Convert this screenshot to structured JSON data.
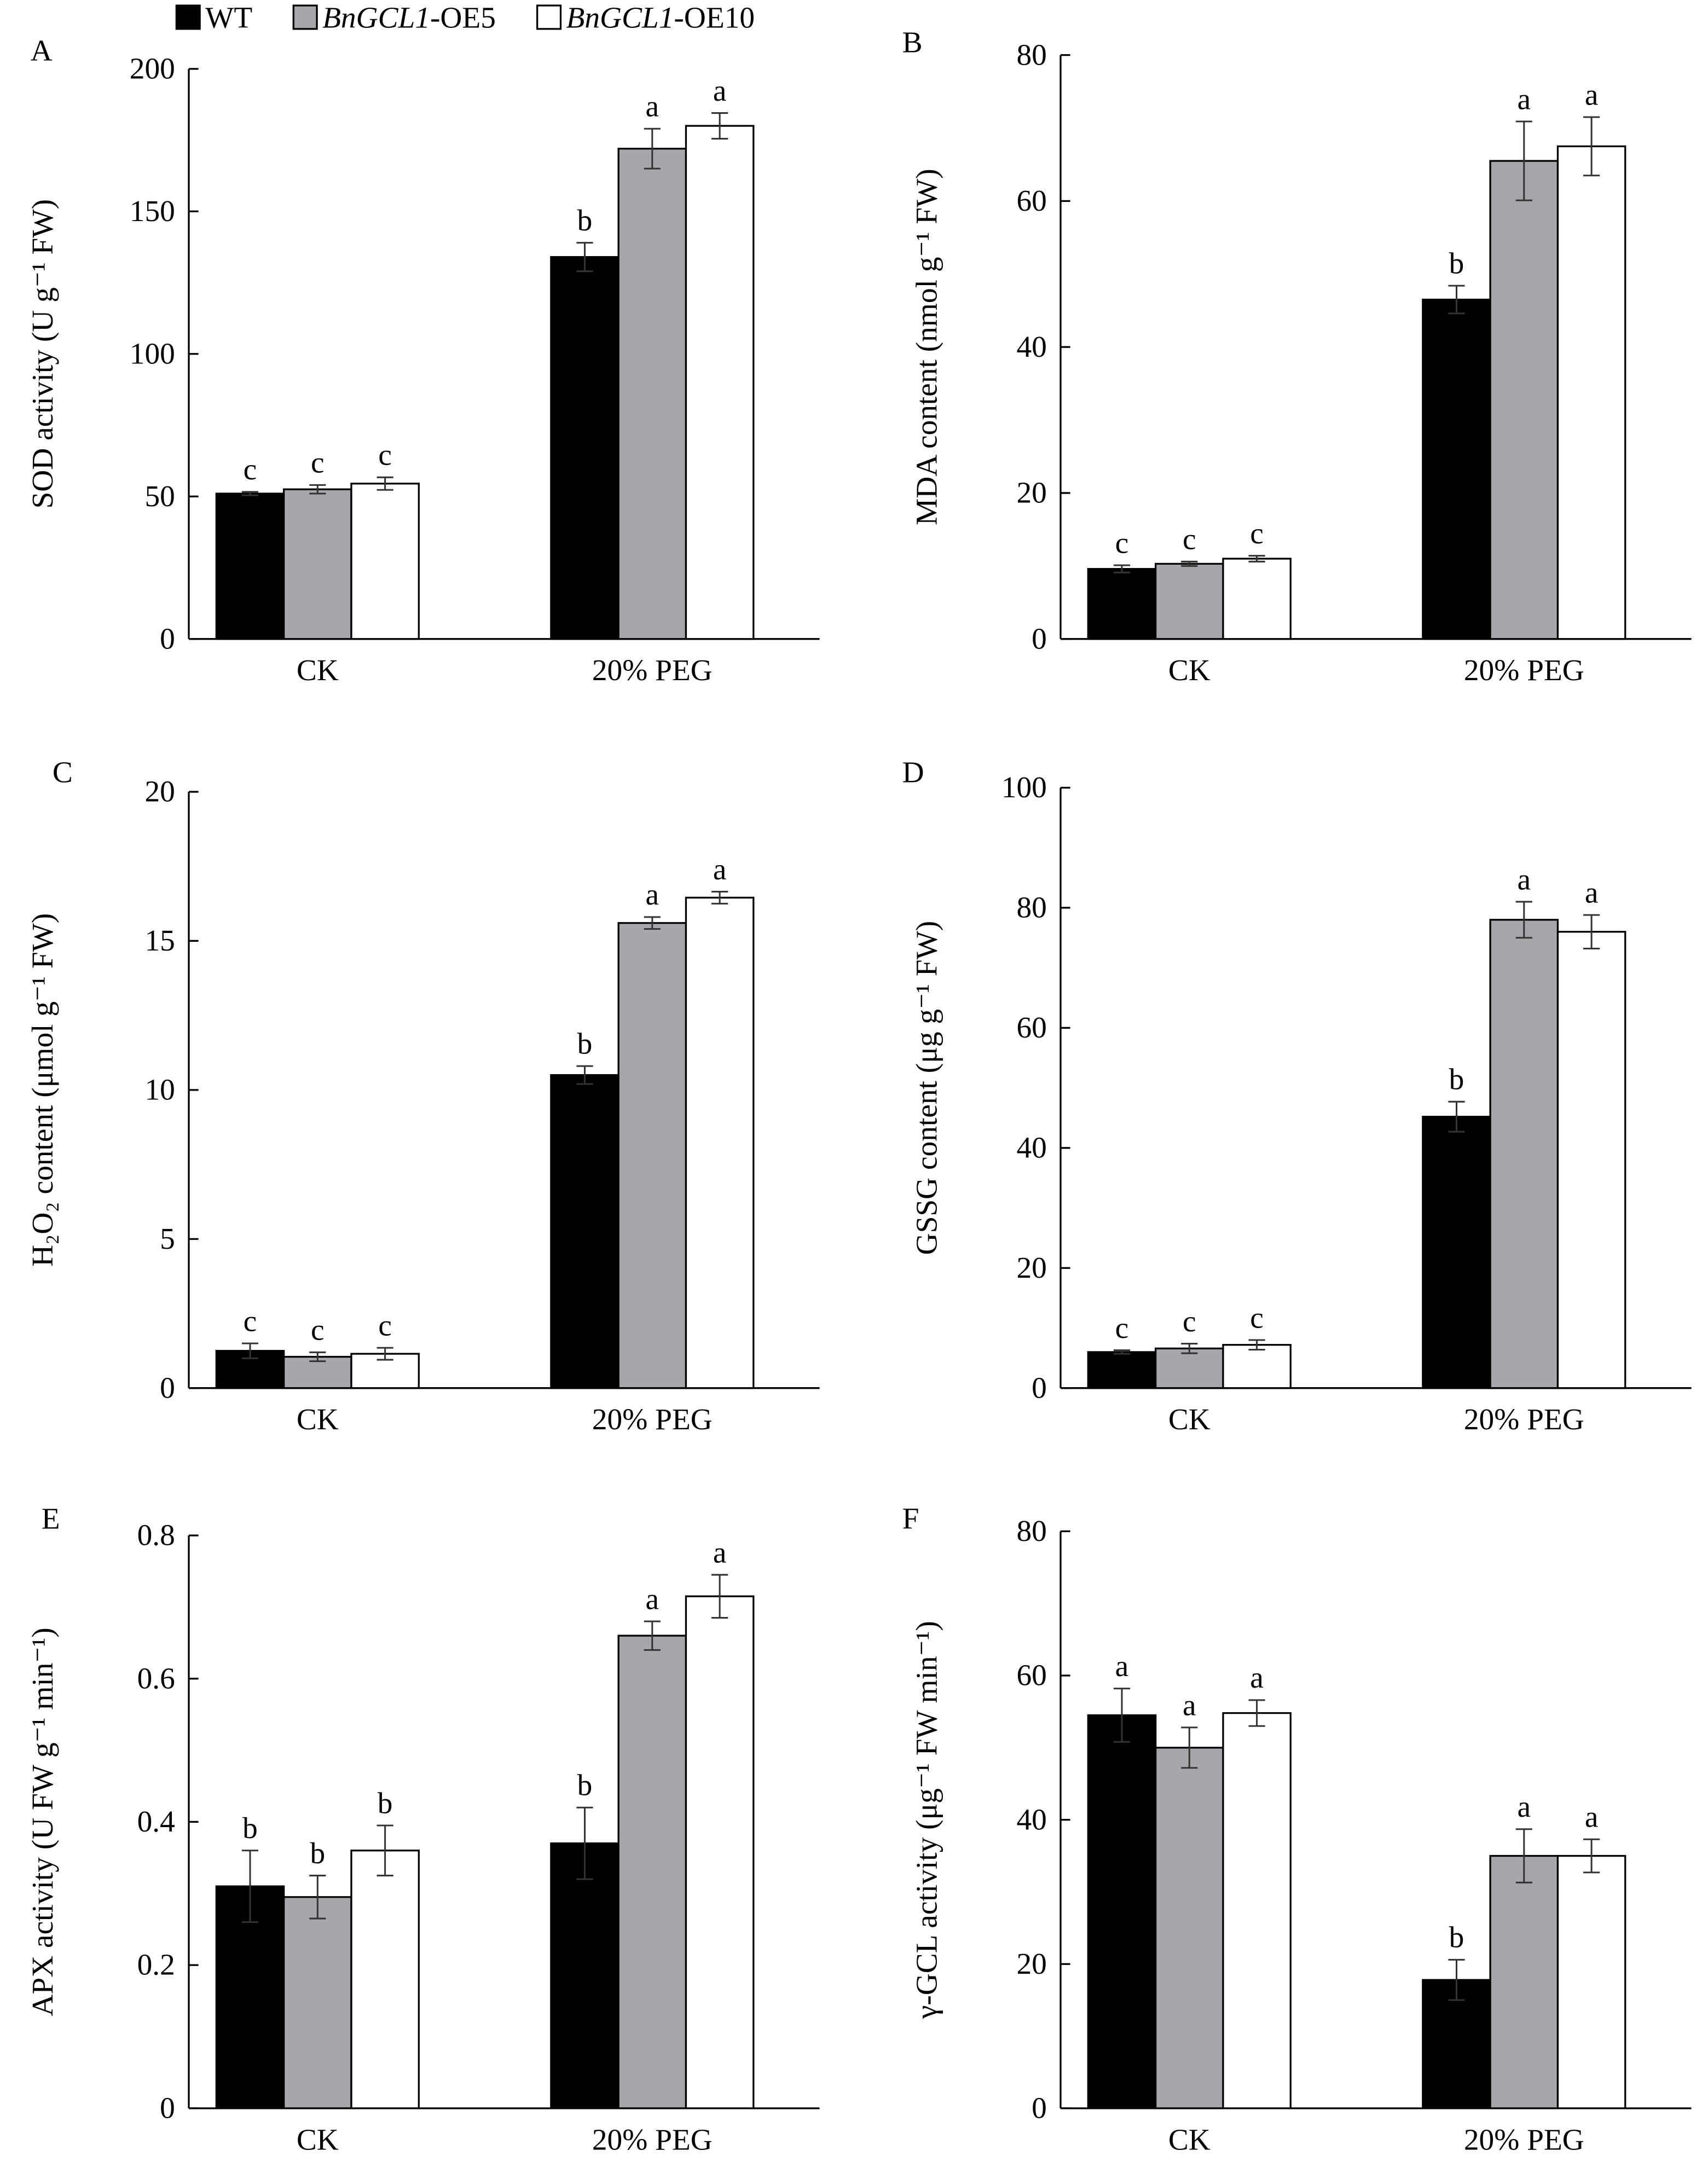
{
  "legend": [
    {
      "italic": "",
      "text": "WT",
      "color": "#000000"
    },
    {
      "italic": "BnGCL1",
      "text": "-OE5",
      "color": "#a7a6ab"
    },
    {
      "italic": "BnGCL1",
      "text": "-OE10",
      "color": "#ffffff"
    }
  ],
  "chart_data": [
    {
      "panel": "A",
      "type": "bar",
      "ylabel": "SOD activity (U g⁻¹ FW)",
      "categories": [
        "CK",
        "20% PEG"
      ],
      "ylim": [
        0,
        200
      ],
      "yticks": [
        "0",
        "50",
        "100",
        "150",
        "200"
      ],
      "series": [
        {
          "name": "WT",
          "values": [
            51,
            134
          ],
          "errors": [
            0.6,
            5
          ],
          "letters": [
            "c",
            "b"
          ]
        },
        {
          "name": "BnGCL1-OE5",
          "values": [
            52.5,
            172
          ],
          "errors": [
            1.5,
            7
          ],
          "letters": [
            "c",
            "a"
          ]
        },
        {
          "name": "BnGCL1-OE10",
          "values": [
            54.5,
            180
          ],
          "errors": [
            2.2,
            4.5
          ],
          "letters": [
            "c",
            "a"
          ]
        }
      ]
    },
    {
      "panel": "B",
      "type": "bar",
      "ylabel": "MDA content (nmol g⁻¹ FW)",
      "categories": [
        "CK",
        "20% PEG"
      ],
      "ylim": [
        0,
        80
      ],
      "yticks": [
        "0",
        "20",
        "40",
        "60",
        "80"
      ],
      "series": [
        {
          "name": "WT",
          "values": [
            9.6,
            46.5
          ],
          "errors": [
            0.5,
            1.9
          ],
          "letters": [
            "c",
            "b"
          ]
        },
        {
          "name": "BnGCL1-OE5",
          "values": [
            10.3,
            65.5
          ],
          "errors": [
            0.3,
            5.4
          ],
          "letters": [
            "c",
            "a"
          ]
        },
        {
          "name": "BnGCL1-OE10",
          "values": [
            11,
            67.5
          ],
          "errors": [
            0.4,
            4
          ]
        }
      ],
      "letters_note": ""
    },
    {
      "panel": "C",
      "type": "bar",
      "ylabel": "H₂O₂ content (μmol g⁻¹ FW)",
      "categories": [
        "CK",
        "20% PEG"
      ],
      "ylim": [
        0,
        20
      ],
      "yticks": [
        "0",
        "5",
        "10",
        "15",
        "20"
      ],
      "series": [
        {
          "name": "WT",
          "values": [
            1.25,
            10.5
          ],
          "errors": [
            0.25,
            0.3
          ],
          "letters": [
            "c",
            "b"
          ]
        },
        {
          "name": "BnGCL1-OE5",
          "values": [
            1.05,
            15.6
          ],
          "errors": [
            0.15,
            0.2
          ],
          "letters": [
            "c",
            "a"
          ]
        },
        {
          "name": "BnGCL1-OE10",
          "values": [
            1.15,
            16.45
          ],
          "errors": [
            0.2,
            0.2
          ],
          "letters": [
            "c",
            "a"
          ]
        }
      ]
    },
    {
      "panel": "D",
      "type": "bar",
      "ylabel": "GSSG content (μg g⁻¹ FW)",
      "categories": [
        "CK",
        "20% PEG"
      ],
      "ylim": [
        0,
        100
      ],
      "yticks": [
        "0",
        "20",
        "40",
        "60",
        "80",
        "100"
      ],
      "series": [
        {
          "name": "WT",
          "values": [
            6,
            45.2
          ],
          "errors": [
            0.3,
            2.5
          ],
          "letters": [
            "c",
            "b"
          ]
        },
        {
          "name": "BnGCL1-OE5",
          "values": [
            6.6,
            78
          ],
          "errors": [
            0.8,
            3
          ],
          "letters": [
            "c",
            "a"
          ]
        },
        {
          "name": "BnGCL1-OE10",
          "values": [
            7.2,
            76
          ],
          "errors": [
            0.8,
            2.8
          ],
          "letters": [
            "c",
            "a"
          ]
        }
      ]
    },
    {
      "panel": "E",
      "type": "bar",
      "ylabel": "APX activity (U FW g⁻¹ min⁻¹)",
      "categories": [
        "CK",
        "20% PEG"
      ],
      "ylim": [
        0,
        0.8
      ],
      "yticks": [
        "0",
        "0.2",
        "0.4",
        "0.6",
        "0.8"
      ],
      "series": [
        {
          "name": "WT",
          "values": [
            0.31,
            0.37
          ],
          "errors": [
            0.05,
            0.05
          ],
          "letters": [
            "b",
            "b"
          ]
        },
        {
          "name": "BnGCL1-OE5",
          "values": [
            0.295,
            0.66
          ],
          "errors": [
            0.03,
            0.02
          ],
          "letters": [
            "b",
            "a"
          ]
        },
        {
          "name": "BnGCL1-OE10",
          "values": [
            0.36,
            0.715
          ],
          "errors": [
            0.035,
            0.03
          ],
          "letters": [
            "b",
            "a"
          ]
        }
      ]
    },
    {
      "panel": "F",
      "type": "bar",
      "ylabel": "γ-GCL activity (μg⁻¹ FW min⁻¹)",
      "categories": [
        "CK",
        "20% PEG"
      ],
      "ylim": [
        0,
        80
      ],
      "yticks": [
        "0",
        "20",
        "40",
        "60",
        "80"
      ],
      "series": [
        {
          "name": "WT",
          "values": [
            54.5,
            17.8
          ],
          "errors": [
            3.7,
            2.8
          ],
          "letters": [
            "a",
            "b"
          ]
        },
        {
          "name": "BnGCL1-OE5",
          "values": [
            50,
            35
          ],
          "errors": [
            2.8,
            3.7
          ],
          "letters": [
            "a",
            "a"
          ]
        },
        {
          "name": "BnGCL1-OE10",
          "values": [
            54.8,
            35
          ],
          "errors": [
            1.8,
            2.3
          ],
          "letters": [
            "a",
            "a"
          ]
        }
      ]
    }
  ]
}
